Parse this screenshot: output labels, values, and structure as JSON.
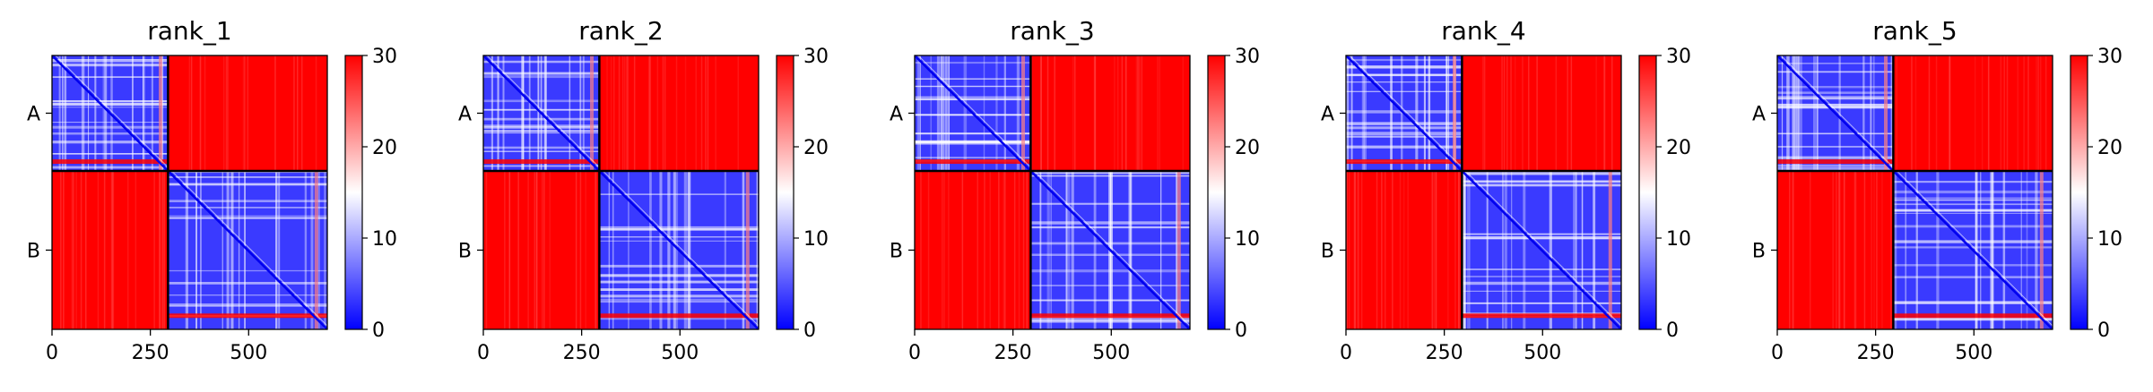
{
  "chart_data": [
    {
      "type": "heatmap",
      "title": "rank_1",
      "chains": [
        "A",
        "B"
      ],
      "chain_boundary": 295,
      "x_ticks": [
        0,
        250,
        500
      ],
      "xlim": [
        0,
        700
      ],
      "colorbar": {
        "ticks": [
          0,
          10,
          20,
          30
        ],
        "range": [
          0,
          30
        ],
        "colormap": "bwr"
      },
      "grid": false
    },
    {
      "type": "heatmap",
      "title": "rank_2",
      "chains": [
        "A",
        "B"
      ],
      "chain_boundary": 295,
      "x_ticks": [
        0,
        250,
        500
      ],
      "xlim": [
        0,
        700
      ],
      "colorbar": {
        "ticks": [
          0,
          10,
          20,
          30
        ],
        "range": [
          0,
          30
        ],
        "colormap": "bwr"
      },
      "grid": false
    },
    {
      "type": "heatmap",
      "title": "rank_3",
      "chains": [
        "A",
        "B"
      ],
      "chain_boundary": 295,
      "x_ticks": [
        0,
        250,
        500
      ],
      "xlim": [
        0,
        700
      ],
      "colorbar": {
        "ticks": [
          0,
          10,
          20,
          30
        ],
        "range": [
          0,
          30
        ],
        "colormap": "bwr"
      },
      "grid": false
    },
    {
      "type": "heatmap",
      "title": "rank_4",
      "chains": [
        "A",
        "B"
      ],
      "chain_boundary": 295,
      "x_ticks": [
        0,
        250,
        500
      ],
      "xlim": [
        0,
        700
      ],
      "colorbar": {
        "ticks": [
          0,
          10,
          20,
          30
        ],
        "range": [
          0,
          30
        ],
        "colormap": "bwr"
      },
      "grid": false
    },
    {
      "type": "heatmap",
      "title": "rank_5",
      "chains": [
        "A",
        "B"
      ],
      "chain_boundary": 295,
      "x_ticks": [
        0,
        250,
        500
      ],
      "xlim": [
        0,
        700
      ],
      "colorbar": {
        "ticks": [
          0,
          10,
          20,
          30
        ],
        "range": [
          0,
          30
        ],
        "colormap": "bwr"
      },
      "grid": false
    }
  ],
  "colors": {
    "high": "#ff0000",
    "mid": "#ffffff",
    "low": "#0000ff",
    "axis": "#000000"
  }
}
